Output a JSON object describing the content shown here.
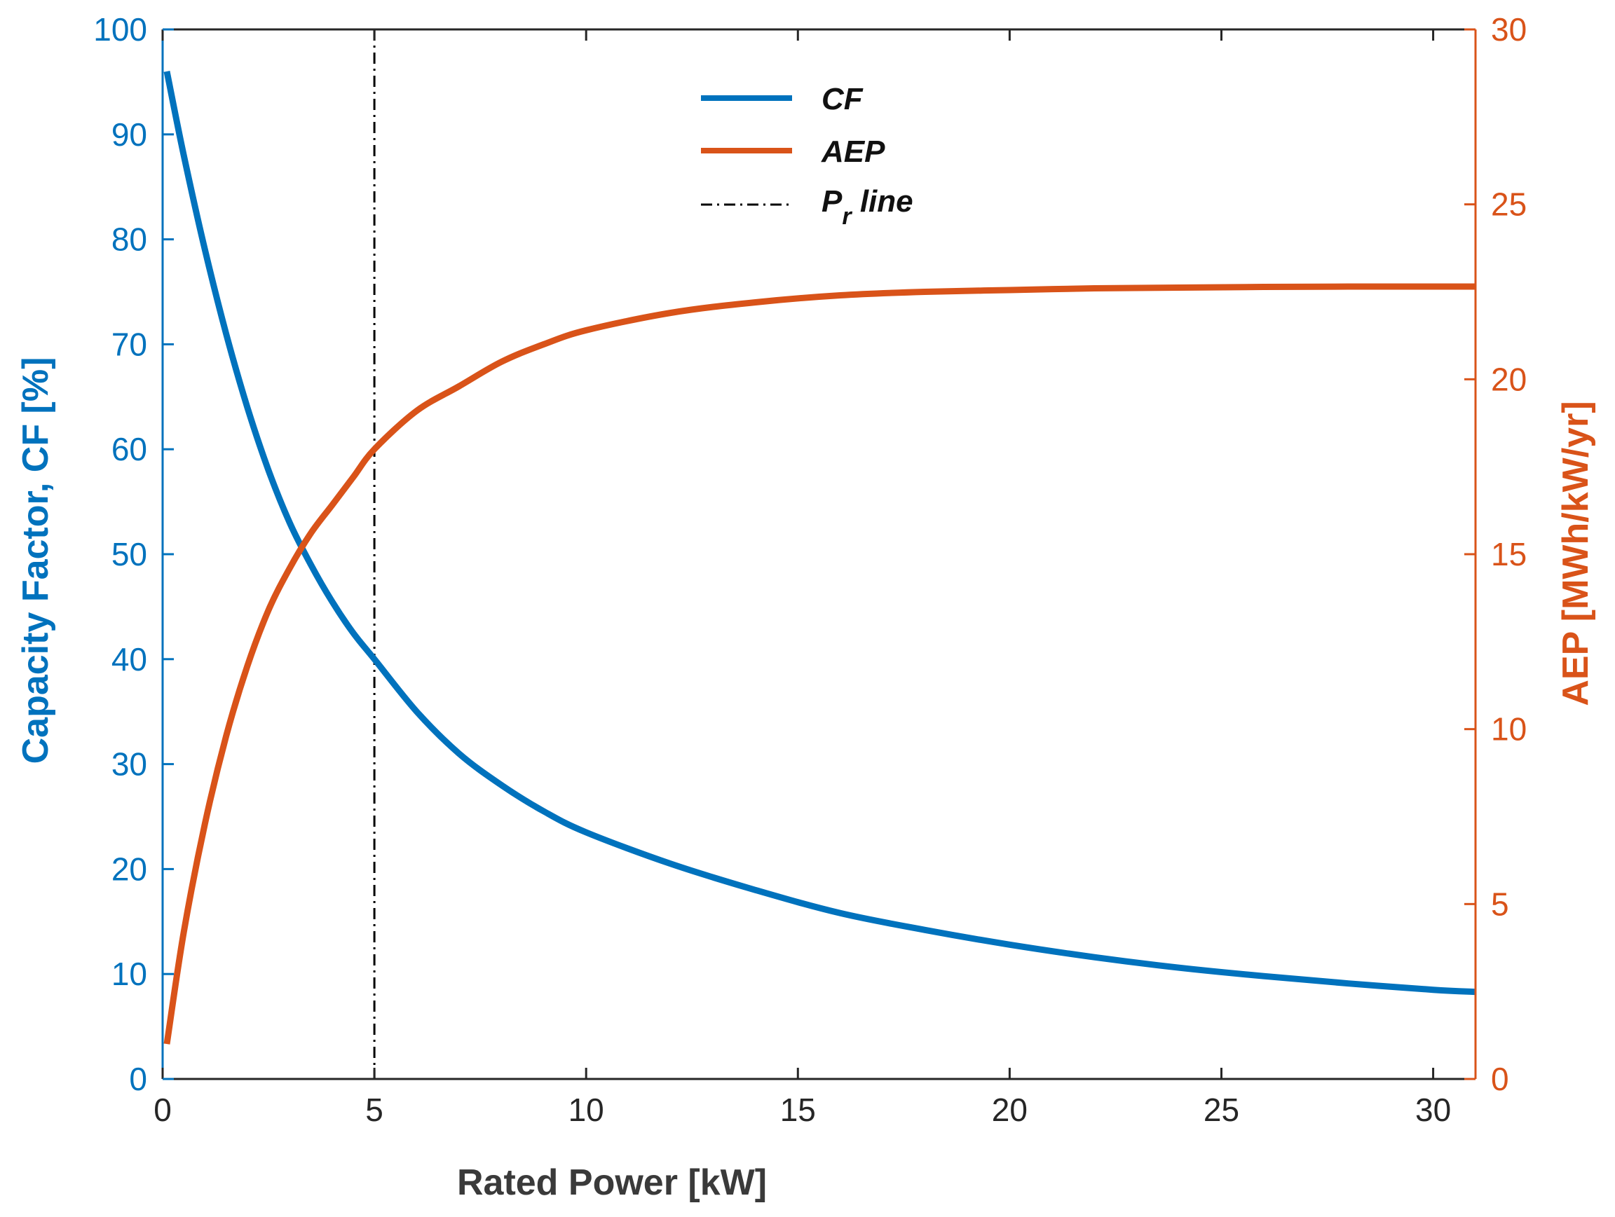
{
  "colors": {
    "cf": "#0072BD",
    "aep": "#D95319",
    "pr_line": "#000000",
    "axis": "#262626",
    "x_title": "#3a3a3a"
  },
  "chart_data": {
    "type": "line",
    "xlabel": "Rated Power [kW]",
    "ylabel_left": "Capacity Factor, CF [%]",
    "ylabel_right": "AEP [MWh/kW/yr]",
    "xlim": [
      0,
      31
    ],
    "ylim_left": [
      0,
      100
    ],
    "ylim_right": [
      0,
      30
    ],
    "x_ticks": [
      "0",
      "5",
      "10",
      "15",
      "20",
      "25",
      "30"
    ],
    "y_left_ticks": [
      "0",
      "10",
      "20",
      "30",
      "40",
      "50",
      "60",
      "70",
      "80",
      "90",
      "100"
    ],
    "y_right_ticks": [
      "0",
      "5",
      "10",
      "15",
      "20",
      "25",
      "30"
    ],
    "legend_position": "top-center",
    "series": [
      {
        "name": "CF",
        "axis": "left",
        "x": [
          0.1,
          0.5,
          1,
          1.5,
          2,
          2.5,
          3,
          3.5,
          4,
          4.5,
          5,
          6,
          7,
          8,
          9,
          10,
          12,
          14,
          16,
          18,
          20,
          22,
          24,
          26,
          28,
          30,
          31
        ],
        "y": [
          96,
          88,
          79,
          71,
          64,
          58,
          53,
          49,
          45.5,
          42.5,
          40,
          35,
          31,
          28,
          25.5,
          23.5,
          20.5,
          18,
          15.8,
          14.2,
          12.8,
          11.6,
          10.6,
          9.8,
          9.1,
          8.5,
          8.3
        ]
      },
      {
        "name": "AEP",
        "axis": "right",
        "x": [
          0.1,
          0.5,
          1,
          1.5,
          2,
          2.5,
          3,
          3.5,
          4,
          4.5,
          5,
          6,
          7,
          8,
          9,
          10,
          12,
          14,
          16,
          18,
          20,
          22,
          24,
          26,
          28,
          30,
          31
        ],
        "y": [
          1.0,
          4.2,
          7.3,
          9.8,
          11.8,
          13.4,
          14.6,
          15.6,
          16.4,
          17.2,
          18.0,
          19.1,
          19.8,
          20.5,
          21.0,
          21.4,
          21.9,
          22.2,
          22.4,
          22.5,
          22.55,
          22.6,
          22.62,
          22.64,
          22.65,
          22.65,
          22.65
        ]
      }
    ],
    "vertical_line": {
      "name": "Pr line",
      "x": 5
    },
    "legend": [
      {
        "label": "CF",
        "style": "solid-blue"
      },
      {
        "label": "AEP",
        "style": "solid-orange"
      },
      {
        "label_main": "P",
        "label_sub": "r",
        "label_rest": " line",
        "style": "dash-dot-black"
      }
    ]
  }
}
